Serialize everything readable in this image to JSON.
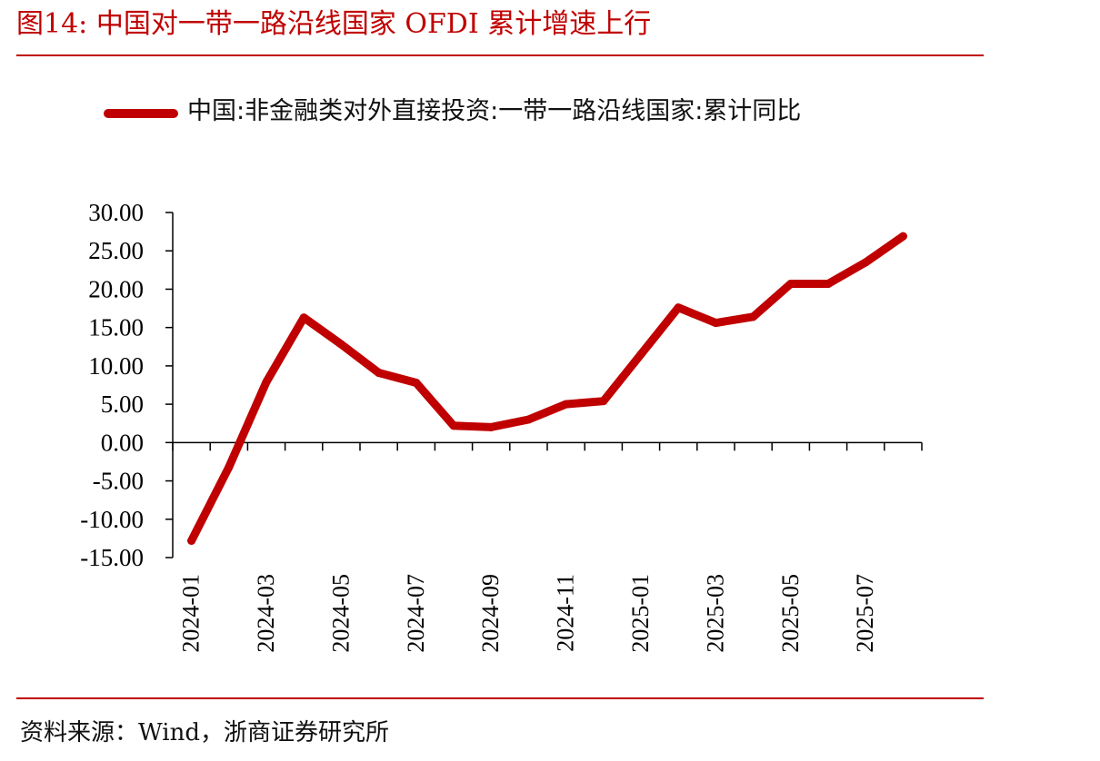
{
  "figure": {
    "title": "图14:    中国对一带一路沿线国家 OFDI 累计增速上行",
    "source": "资料来源：Wind，浙商证券研究所"
  },
  "colors": {
    "accent": "#c00000",
    "series": "#c00000",
    "axis": "#000000"
  },
  "chart_data": {
    "type": "line",
    "title": "",
    "xlabel": "",
    "ylabel": "",
    "ylim": [
      -15,
      30
    ],
    "yticks": [
      "30.00",
      "25.00",
      "20.00",
      "15.00",
      "10.00",
      "5.00",
      "0.00",
      "-5.00",
      "-10.00",
      "-15.00"
    ],
    "ytick_values": [
      30,
      25,
      20,
      15,
      10,
      5,
      0,
      -5,
      -10,
      -15
    ],
    "x": [
      "2024-01",
      "2024-02",
      "2024-03",
      "2024-04",
      "2024-05",
      "2024-06",
      "2024-07",
      "2024-08",
      "2024-09",
      "2024-10",
      "2024-11",
      "2024-12",
      "2025-01",
      "2025-02",
      "2025-03",
      "2025-04",
      "2025-05",
      "2025-06",
      "2025-07",
      "2025-08"
    ],
    "xtick_labels": [
      "2024-01",
      "2024-03",
      "2024-05",
      "2024-07",
      "2024-09",
      "2024-11",
      "2025-01",
      "2025-03",
      "2025-05",
      "2025-07"
    ],
    "grid": false,
    "legend_position": "top",
    "series": [
      {
        "name": "中国:非金融类对外直接投资:一带一路沿线国家:累计同比",
        "values": [
          -12.8,
          -3.2,
          7.9,
          16.3,
          12.8,
          9.1,
          7.8,
          2.2,
          2.0,
          3.0,
          5.0,
          5.4,
          11.5,
          17.6,
          15.6,
          16.4,
          20.7,
          20.7,
          23.5,
          26.9
        ]
      }
    ]
  }
}
